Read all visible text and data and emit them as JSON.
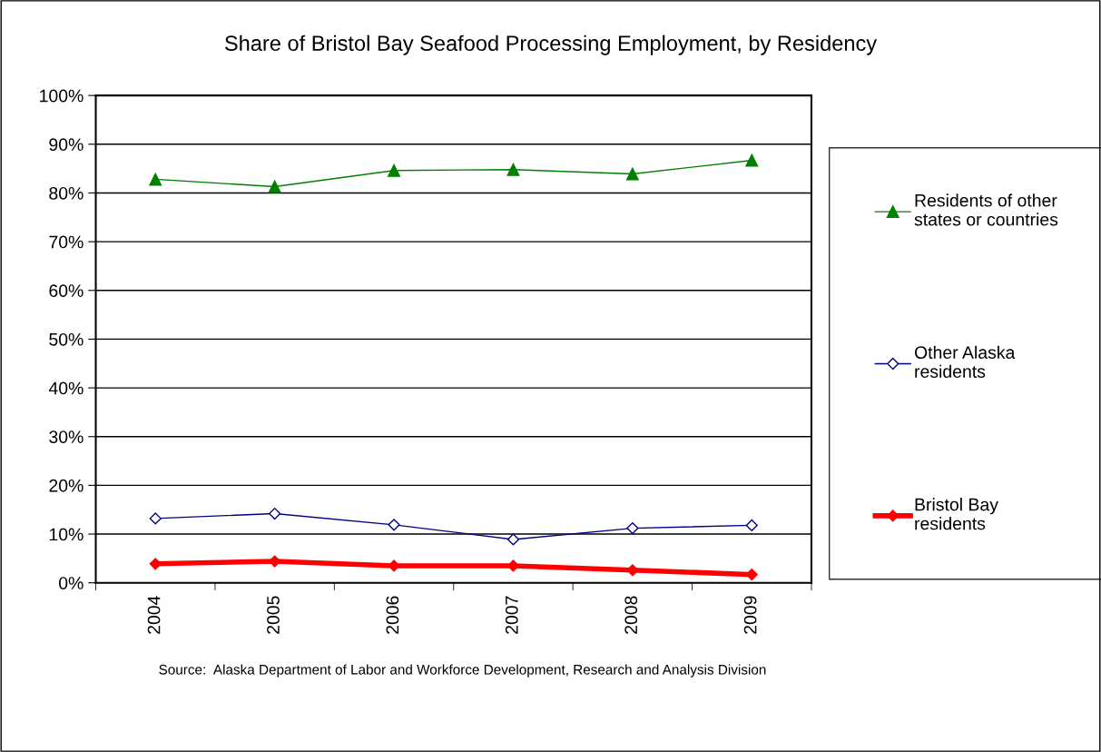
{
  "chart_data": {
    "type": "line",
    "title": "Share of Bristol Bay Seafood Processing Employment, by Residency",
    "categories": [
      "2004",
      "2005",
      "2006",
      "2007",
      "2008",
      "2009"
    ],
    "series": [
      {
        "name": "Residents of other\nstates or countries",
        "color": "#008000",
        "marker": "triangle",
        "values": [
          82.8,
          81.3,
          84.6,
          84.8,
          83.9,
          86.7
        ]
      },
      {
        "name": "Other Alaska\nresidents",
        "color": "#000080",
        "marker": "diamond",
        "values": [
          13.2,
          14.2,
          11.9,
          8.9,
          11.2,
          11.8
        ]
      },
      {
        "name": "Bristol Bay\nresidents",
        "color": "#ff0000",
        "marker": "diamond",
        "values": [
          3.9,
          4.4,
          3.5,
          3.5,
          2.6,
          1.7
        ]
      }
    ],
    "ylim": [
      0,
      100
    ],
    "yticks": [
      {
        "value": 0,
        "label": "0%"
      },
      {
        "value": 10,
        "label": "10%"
      },
      {
        "value": 20,
        "label": "20%"
      },
      {
        "value": 30,
        "label": "30%"
      },
      {
        "value": 40,
        "label": "40%"
      },
      {
        "value": 50,
        "label": "50%"
      },
      {
        "value": 60,
        "label": "60%"
      },
      {
        "value": 70,
        "label": "70%"
      },
      {
        "value": 80,
        "label": "80%"
      },
      {
        "value": 90,
        "label": "90%"
      },
      {
        "value": 100,
        "label": "100%"
      }
    ],
    "grid": "y",
    "legend": "right",
    "annotations": [
      "Source:  Alaska Department of Labor and Workforce Development, Research and Analysis Division"
    ]
  }
}
